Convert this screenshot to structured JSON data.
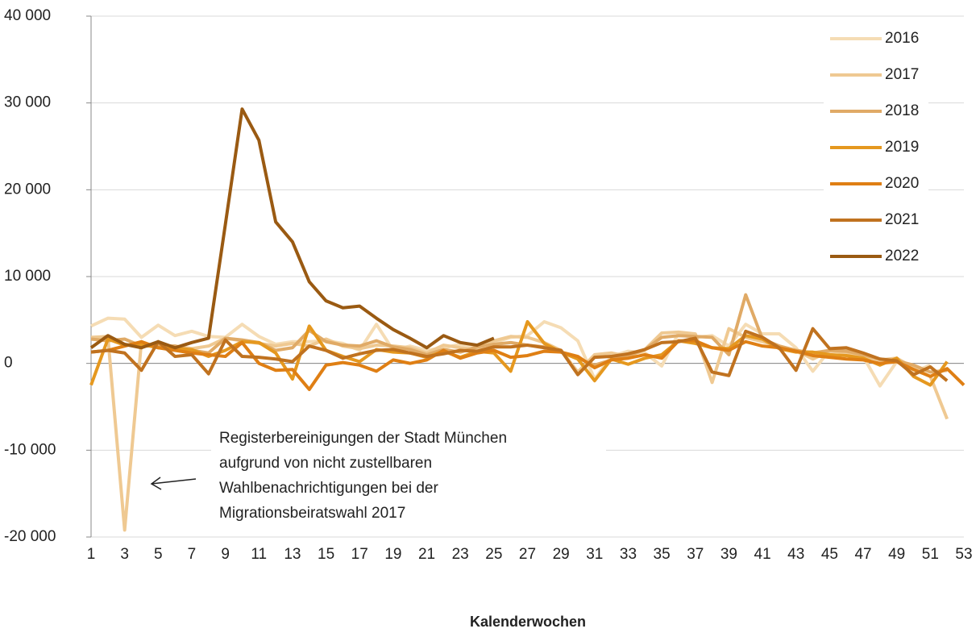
{
  "chart_data": {
    "type": "line",
    "x_label": "Kalenderwochen",
    "annotation": [
      "Registerbereinigungen der Stadt München",
      "aufgrund von nicht zustellbaren",
      "Wahlbenachrichtigungen bei der",
      "Migrationsbeiratswahl 2017"
    ],
    "x": [
      1,
      2,
      3,
      4,
      5,
      6,
      7,
      8,
      9,
      10,
      11,
      12,
      13,
      14,
      15,
      16,
      17,
      18,
      19,
      20,
      21,
      22,
      23,
      24,
      25,
      26,
      27,
      28,
      29,
      30,
      31,
      32,
      33,
      34,
      35,
      36,
      37,
      38,
      39,
      40,
      41,
      42,
      43,
      44,
      45,
      46,
      47,
      48,
      49,
      50,
      51,
      52,
      53
    ],
    "xlim": [
      1,
      53
    ],
    "xticks": [
      1,
      3,
      5,
      7,
      9,
      11,
      13,
      15,
      17,
      19,
      21,
      23,
      25,
      27,
      29,
      31,
      33,
      35,
      37,
      39,
      41,
      43,
      45,
      47,
      49,
      51,
      53
    ],
    "ylim": [
      -20000,
      40000
    ],
    "yticks": [
      {
        "value": -20000,
        "label": "-20 000"
      },
      {
        "value": -10000,
        "label": "-10 000"
      },
      0,
      {
        "value": 10000,
        "label": "10 000"
      },
      {
        "value": 20000,
        "label": "20 000"
      },
      {
        "value": 30000,
        "label": "30 000"
      },
      {
        "value": 40000,
        "label": "40 000"
      }
    ],
    "grid": true,
    "legend": "top-right",
    "series": [
      {
        "name": "2016",
        "color": "#f5dcb4",
        "values": [
          4300,
          5200,
          5100,
          3000,
          4400,
          3200,
          3700,
          3100,
          3000,
          4500,
          3100,
          2200,
          2500,
          2500,
          2600,
          2300,
          1500,
          4500,
          1500,
          2000,
          1500,
          1800,
          2200,
          2000,
          2400,
          3000,
          3200,
          4800,
          4100,
          2600,
          -1800,
          800,
          1400,
          1200,
          -300,
          3500,
          3000,
          3200,
          2000,
          4500,
          3400,
          3400,
          1800,
          -900,
          1500,
          1200,
          800,
          -2600,
          200,
          -1000,
          -200,
          null,
          null
        ]
      },
      {
        "name": "2017",
        "color": "#efc992",
        "values": [
          3000,
          3100,
          -19200,
          2500,
          1800,
          2000,
          1700,
          2000,
          2900,
          2600,
          2300,
          2000,
          2300,
          2000,
          2800,
          2000,
          1700,
          2100,
          2000,
          1800,
          1200,
          2100,
          1800,
          1600,
          2600,
          3100,
          3000,
          2400,
          1500,
          -1000,
          1000,
          1200,
          800,
          1600,
          3500,
          3600,
          3400,
          -2200,
          4000,
          3000,
          2500,
          2000,
          1500,
          500,
          1400,
          1300,
          800,
          400,
          600,
          -500,
          -1500,
          -6400,
          null
        ]
      },
      {
        "name": "2018",
        "color": "#e0aa66",
        "values": [
          2800,
          2600,
          2800,
          2000,
          2000,
          2000,
          1500,
          1200,
          2900,
          2700,
          2400,
          1500,
          1800,
          3800,
          2500,
          2100,
          2000,
          2600,
          1900,
          1600,
          1000,
          1600,
          1300,
          1900,
          2200,
          2400,
          2100,
          1900,
          1300,
          600,
          -200,
          400,
          900,
          1600,
          3000,
          3200,
          3100,
          3000,
          1000,
          7900,
          2800,
          2000,
          1500,
          1200,
          1500,
          1400,
          1000,
          500,
          300,
          -200,
          -1000,
          -800,
          null
        ]
      },
      {
        "name": "2019",
        "color": "#e5981f",
        "values": [
          -2500,
          2800,
          2100,
          2200,
          1800,
          1700,
          1600,
          800,
          1500,
          2500,
          2400,
          1200,
          -1800,
          4300,
          1500,
          800,
          200,
          1600,
          1300,
          1200,
          700,
          1400,
          700,
          1400,
          1200,
          -900,
          4800,
          2300,
          1300,
          500,
          -2000,
          500,
          -100,
          600,
          1000,
          2600,
          2300,
          1800,
          1700,
          3200,
          2800,
          1700,
          1300,
          1300,
          1000,
          900,
          600,
          -200,
          600,
          -1500,
          -2500,
          200,
          null
        ]
      },
      {
        "name": "2020",
        "color": "#df7f14",
        "values": [
          1300,
          1500,
          2000,
          2500,
          1800,
          1500,
          1200,
          1000,
          800,
          2400,
          0,
          -800,
          -700,
          -3000,
          -200,
          100,
          -200,
          -900,
          400,
          0,
          400,
          1500,
          600,
          1200,
          1500,
          700,
          900,
          1400,
          1300,
          800,
          -500,
          400,
          600,
          1000,
          600,
          2600,
          2600,
          1800,
          1500,
          2500,
          2000,
          1800,
          1400,
          900,
          700,
          500,
          400,
          0,
          200,
          -700,
          -1500,
          -600,
          -2500
        ]
      },
      {
        "name": "2021",
        "color": "#c0721f",
        "values": [
          1300,
          1500,
          1200,
          -800,
          2500,
          800,
          1000,
          -1200,
          2700,
          800,
          700,
          500,
          200,
          2000,
          1500,
          600,
          1100,
          1500,
          1600,
          1200,
          800,
          1100,
          1500,
          1400,
          1900,
          1900,
          2100,
          1800,
          1500,
          -1300,
          700,
          800,
          1100,
          1600,
          2400,
          2500,
          2900,
          -1000,
          -1400,
          3700,
          3000,
          1800,
          -800,
          4000,
          1700,
          1800,
          1200,
          500,
          300,
          -1300,
          -400,
          -2000,
          null
        ]
      },
      {
        "name": "2022",
        "color": "#9a5a12",
        "values": [
          1800,
          3200,
          2200,
          1800,
          2500,
          1800,
          2400,
          2900,
          16000,
          29300,
          25700,
          16300,
          14000,
          9400,
          7200,
          6400,
          6600,
          5200,
          3900,
          2900,
          1800,
          3200,
          2400,
          2100,
          2900,
          null,
          null,
          null,
          null,
          null,
          null,
          null,
          null,
          null,
          null,
          null,
          null,
          null,
          null,
          null,
          null,
          null,
          null,
          null,
          null,
          null,
          null,
          null,
          null,
          null,
          null,
          null,
          null
        ]
      }
    ]
  }
}
